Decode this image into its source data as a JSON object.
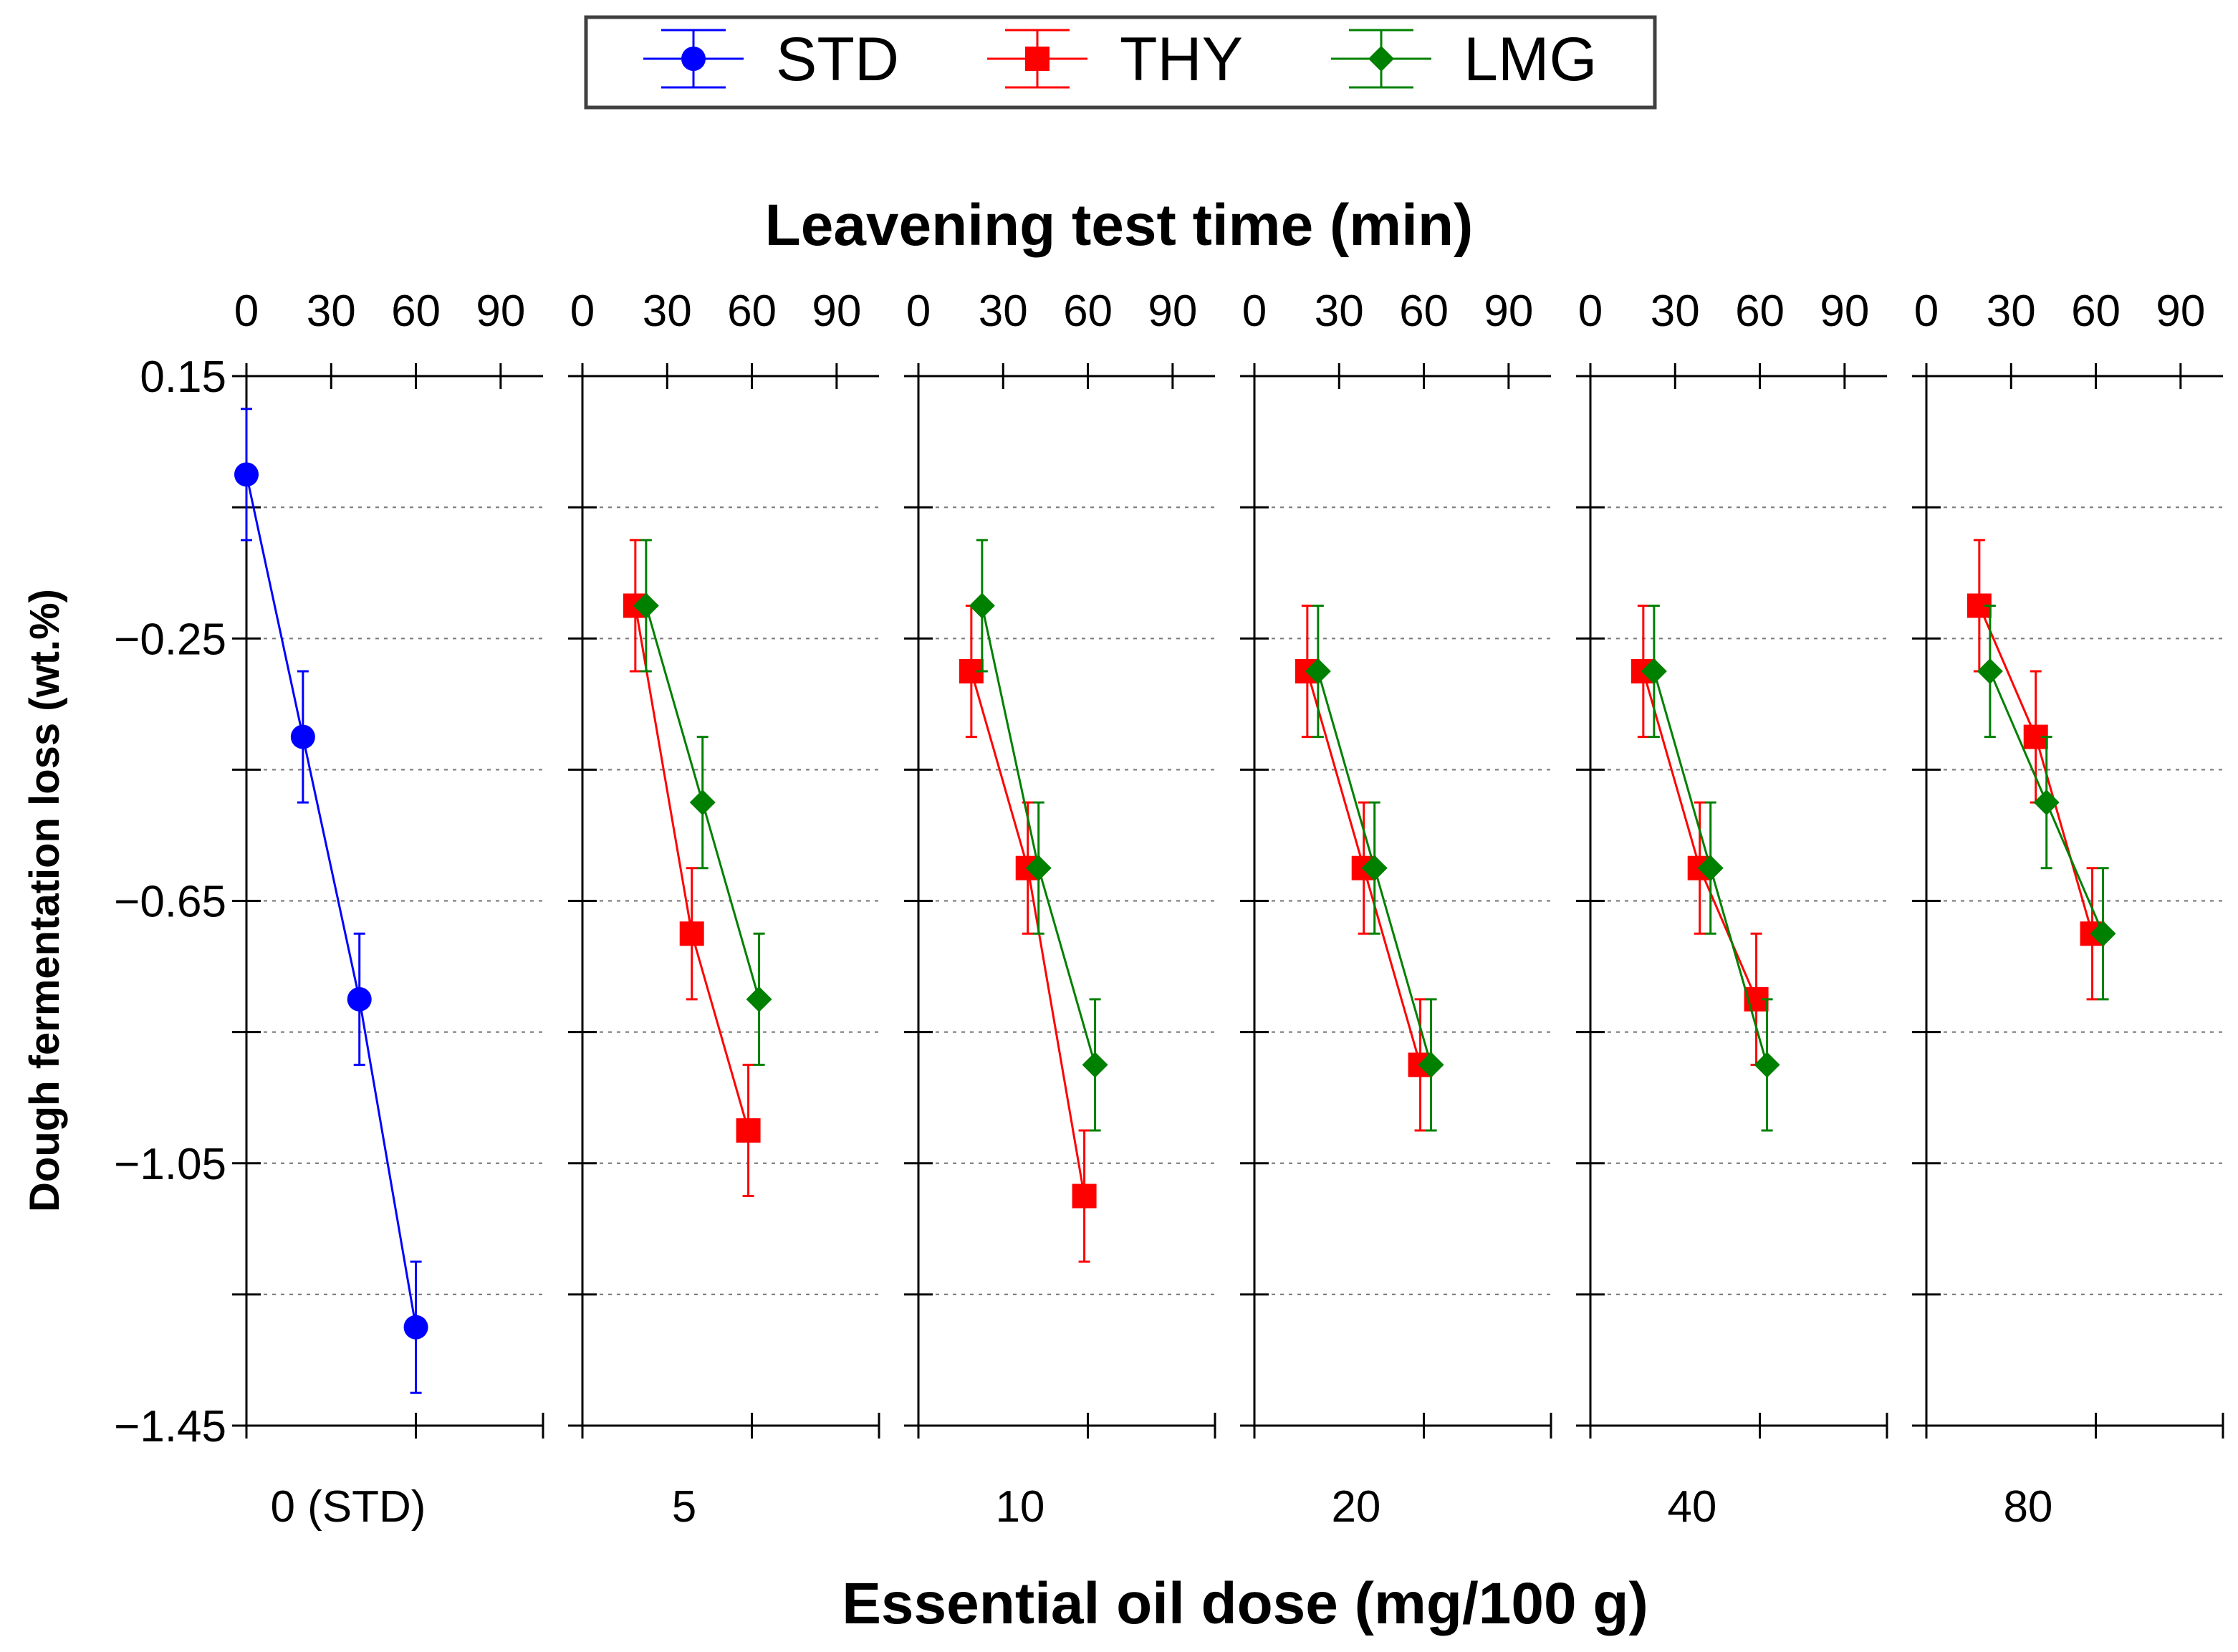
{
  "chart_data": {
    "type": "line",
    "title": "Leavening test time (min)",
    "xlabel": "Essential oil dose (mg/100 g)",
    "ylabel": "Dough fermentation loss (wt.%)",
    "ylim": [
      -1.45,
      0.15
    ],
    "yticks": [
      0.15,
      -0.25,
      -0.65,
      -1.05,
      -1.45
    ],
    "ytick_labels": [
      "0.15",
      "−0.25",
      "−0.65",
      "−1.05",
      "−1.45"
    ],
    "xlim_time": [
      0,
      105
    ],
    "time_ticks": [
      0,
      30,
      60,
      90
    ],
    "time_tick_labels": [
      "0",
      "30",
      "60",
      "90"
    ],
    "legend_position": "top-center",
    "error_bar": 0.1,
    "series": [
      {
        "name": "STD",
        "color": "#0000ff",
        "marker": "circle"
      },
      {
        "name": "THY",
        "color": "#ff0000",
        "marker": "square"
      },
      {
        "name": "LMG",
        "color": "#008000",
        "marker": "diamond"
      }
    ],
    "panels": [
      {
        "dose_label": "0 (STD)",
        "lines": [
          {
            "series": "STD",
            "x": [
              0,
              20,
              40,
              60
            ],
            "y": [
              0.0,
              -0.4,
              -0.8,
              -1.3
            ]
          }
        ]
      },
      {
        "dose_label": "5",
        "lines": [
          {
            "series": "THY",
            "x": [
              20,
              40,
              60
            ],
            "y": [
              -0.2,
              -0.7,
              -1.0
            ]
          },
          {
            "series": "LMG",
            "x": [
              20,
              40,
              60
            ],
            "y": [
              -0.2,
              -0.5,
              -0.8
            ]
          }
        ]
      },
      {
        "dose_label": "10",
        "lines": [
          {
            "series": "THY",
            "x": [
              20,
              40,
              60
            ],
            "y": [
              -0.3,
              -0.6,
              -1.1
            ]
          },
          {
            "series": "LMG",
            "x": [
              20,
              40,
              60
            ],
            "y": [
              -0.2,
              -0.6,
              -0.9
            ]
          }
        ]
      },
      {
        "dose_label": "20",
        "lines": [
          {
            "series": "THY",
            "x": [
              20,
              40,
              60
            ],
            "y": [
              -0.3,
              -0.6,
              -0.9
            ]
          },
          {
            "series": "LMG",
            "x": [
              20,
              40,
              60
            ],
            "y": [
              -0.3,
              -0.6,
              -0.9
            ]
          }
        ]
      },
      {
        "dose_label": "40",
        "lines": [
          {
            "series": "THY",
            "x": [
              20,
              40,
              60
            ],
            "y": [
              -0.3,
              -0.6,
              -0.8
            ]
          },
          {
            "series": "LMG",
            "x": [
              20,
              40,
              60
            ],
            "y": [
              -0.3,
              -0.6,
              -0.9
            ]
          }
        ]
      },
      {
        "dose_label": "80",
        "lines": [
          {
            "series": "THY",
            "x": [
              20,
              40,
              60
            ],
            "y": [
              -0.2,
              -0.4,
              -0.7
            ]
          },
          {
            "series": "LMG",
            "x": [
              20,
              40,
              60
            ],
            "y": [
              -0.3,
              -0.5,
              -0.7
            ]
          }
        ]
      }
    ]
  }
}
